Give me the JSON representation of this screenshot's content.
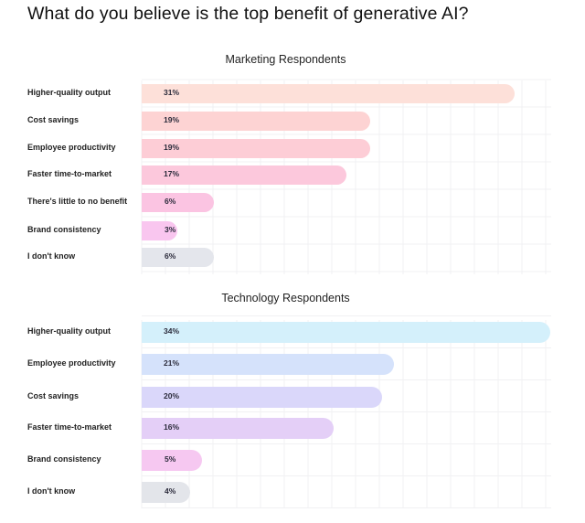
{
  "chart_data": [
    {
      "type": "bar",
      "orientation": "horizontal",
      "title": "Marketing Respondents",
      "categories": [
        "Higher-quality output",
        "Cost savings",
        "Employee productivity",
        "Faster time-to-market",
        "There's little to no benefit",
        "Brand consistency",
        "I don't know"
      ],
      "values": [
        31,
        19,
        19,
        17,
        6,
        3,
        6
      ],
      "value_labels": [
        "31%",
        "19%",
        "19%",
        "17%",
        "6%",
        "3%",
        "6%"
      ],
      "colors": [
        "#fde0d9",
        "#fdd3d3",
        "#fdcdd6",
        "#fcc8dc",
        "#fbc4e2",
        "#f9c6ef",
        "#e4e6ec"
      ],
      "unit": "%",
      "xlim": [
        0,
        34
      ],
      "grid": true
    },
    {
      "type": "bar",
      "orientation": "horizontal",
      "title": "Technology Respondents",
      "categories": [
        "Higher-quality output",
        "Employee productivity",
        "Cost savings",
        "Faster time-to-market",
        "Brand consistency",
        "I don't know"
      ],
      "values": [
        34,
        21,
        20,
        16,
        5,
        4
      ],
      "value_labels": [
        "34%",
        "21%",
        "20%",
        "16%",
        "5%",
        "4%"
      ],
      "colors": [
        "#d4f0fb",
        "#d5e2fb",
        "#dad7fa",
        "#e4cff7",
        "#f6c8f1",
        "#e3e5ea"
      ],
      "unit": "%",
      "xlim": [
        0,
        34
      ],
      "grid": true
    }
  ],
  "page": {
    "title": "What do you believe is the top benefit of generative AI?"
  }
}
